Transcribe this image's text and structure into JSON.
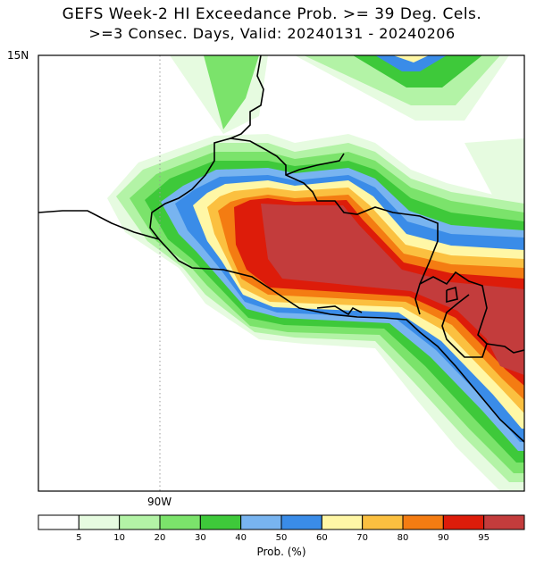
{
  "title": "GEFS Week-2 HI Exceedance Prob. >= 39 Deg. Cels.",
  "subtitle": ">=3 Consec. Days, Valid: 20240131 - 20240206",
  "lat_label": "15N",
  "lon_label": "90W",
  "colorbar": {
    "title": "Prob. (%)",
    "ticks": [
      "5",
      "10",
      "20",
      "30",
      "40",
      "50",
      "60",
      "70",
      "80",
      "90",
      "95"
    ],
    "colors": [
      "#ffffff",
      "#e6fbe0",
      "#b3f3a6",
      "#7be36b",
      "#3ec93a",
      "#78b4f0",
      "#3a8ce8",
      "#fff7a6",
      "#fbc040",
      "#f47c12",
      "#dd1c0a",
      "#c33c3c"
    ]
  },
  "levels": [
    {
      "threshold": "5",
      "color": "#e6fbe0"
    },
    {
      "threshold": "10",
      "color": "#b3f3a6"
    },
    {
      "threshold": "20",
      "color": "#7be36b"
    },
    {
      "threshold": "30",
      "color": "#3ec93a"
    },
    {
      "threshold": "40",
      "color": "#78b4f0"
    },
    {
      "threshold": "50",
      "color": "#3a8ce8"
    },
    {
      "threshold": "60",
      "color": "#fff7a6"
    },
    {
      "threshold": "70",
      "color": "#fbc040"
    },
    {
      "threshold": "80",
      "color": "#f47c12"
    },
    {
      "threshold": "90",
      "color": "#dd1c0a"
    },
    {
      "threshold": "95",
      "color": "#c33c3c"
    }
  ]
}
